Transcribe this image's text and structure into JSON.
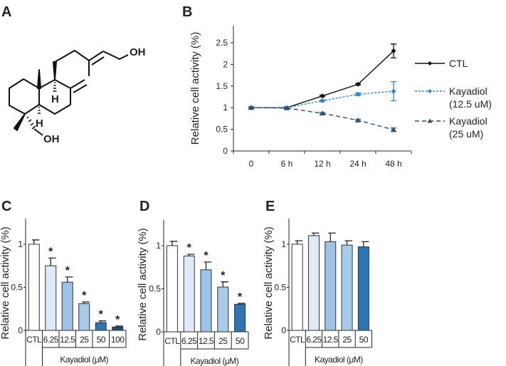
{
  "panels": {
    "A": "A",
    "B": "B",
    "C": "C",
    "D": "D",
    "E": "E"
  },
  "molecule": {
    "oh_top": "OH",
    "oh_bottom": "OH",
    "h_c9": "H",
    "h_c5": "H"
  },
  "colors": {
    "ctl_line": "#111111",
    "k12_line": "#2e86c8",
    "k25_line": "#2f4f74",
    "bar_ctl": "#ffffff",
    "bar_6_25": "#deebf7",
    "bar_12_5": "#9dc3e6",
    "bar_25": "#a9cbea",
    "bar_50": "#2e75b6",
    "bar_100": "#1f4e79"
  },
  "chart_data": [
    {
      "id": "B",
      "type": "line",
      "ylabel": "Relative cell activity (%)",
      "xlabel": "",
      "categories": [
        "0",
        "6 h",
        "12 h",
        "24 h",
        "48 h"
      ],
      "yticks": [
        "0",
        "0.5",
        "1",
        "1.5",
        "2",
        "2.5"
      ],
      "ylim": [
        0,
        2.5
      ],
      "legend": "right",
      "series": [
        {
          "name": "CTL",
          "name2": "",
          "values": [
            1,
            1,
            1.27,
            1.54,
            2.31
          ],
          "errors": [
            0.02,
            0.02,
            0.02,
            0.02,
            0.16
          ],
          "marker": "diamond",
          "dash": "solid"
        },
        {
          "name": "Kayadiol",
          "name2": "(12.5 uM)",
          "values": [
            1,
            1,
            1.16,
            1.31,
            1.38
          ],
          "errors": [
            0.02,
            0.02,
            0.02,
            0.03,
            0.22
          ],
          "marker": "diamond",
          "dash": "dotted"
        },
        {
          "name": "Kayadiol",
          "name2": "(25 uM)",
          "values": [
            1,
            0.99,
            0.87,
            0.71,
            0.49
          ],
          "errors": [
            0.02,
            0.02,
            0.02,
            0.02,
            0.04
          ],
          "marker": "triangle",
          "dash": "dashed"
        }
      ]
    },
    {
      "id": "C",
      "type": "bar",
      "ylabel": "Relative cell activity (%)",
      "xlabel": "Kayadiol (μM)",
      "categories": [
        "CTL",
        "6.25",
        "12.5",
        "25",
        "50",
        "100"
      ],
      "values": [
        1,
        0.75,
        0.56,
        0.31,
        0.09,
        0.04
      ],
      "errors": [
        0.05,
        0.09,
        0.06,
        0.02,
        0.02,
        0.01
      ],
      "significant": [
        "",
        "*",
        "*",
        "*",
        "*",
        "*"
      ],
      "yticks": [
        "0",
        "0.5",
        "1"
      ],
      "ylim": [
        0,
        1.3
      ]
    },
    {
      "id": "D",
      "type": "bar",
      "ylabel": "Relative cell activity (%)",
      "xlabel": "Kayadiol (μM)",
      "categories": [
        "CTL",
        "6.25",
        "12.5",
        "25",
        "50"
      ],
      "values": [
        1,
        0.88,
        0.72,
        0.52,
        0.32
      ],
      "errors": [
        0.05,
        0.02,
        0.09,
        0.06,
        0.01
      ],
      "significant": [
        "",
        "*",
        "*",
        "*",
        "*"
      ],
      "yticks": [
        "0",
        "0.5",
        "1"
      ],
      "ylim": [
        0,
        1.3
      ]
    },
    {
      "id": "E",
      "type": "bar",
      "ylabel": "Relative cell activity (%)",
      "xlabel": "Kayadiol (μM)",
      "categories": [
        "CTL",
        "6.25",
        "12.5",
        "25",
        "50"
      ],
      "values": [
        1,
        1.1,
        1.03,
        0.99,
        0.97
      ],
      "errors": [
        0.04,
        0.03,
        0.1,
        0.05,
        0.06
      ],
      "significant": [
        "",
        "",
        "",
        "",
        ""
      ],
      "yticks": [
        "0",
        "0.5",
        "1"
      ],
      "ylim": [
        0,
        1.3
      ]
    }
  ]
}
